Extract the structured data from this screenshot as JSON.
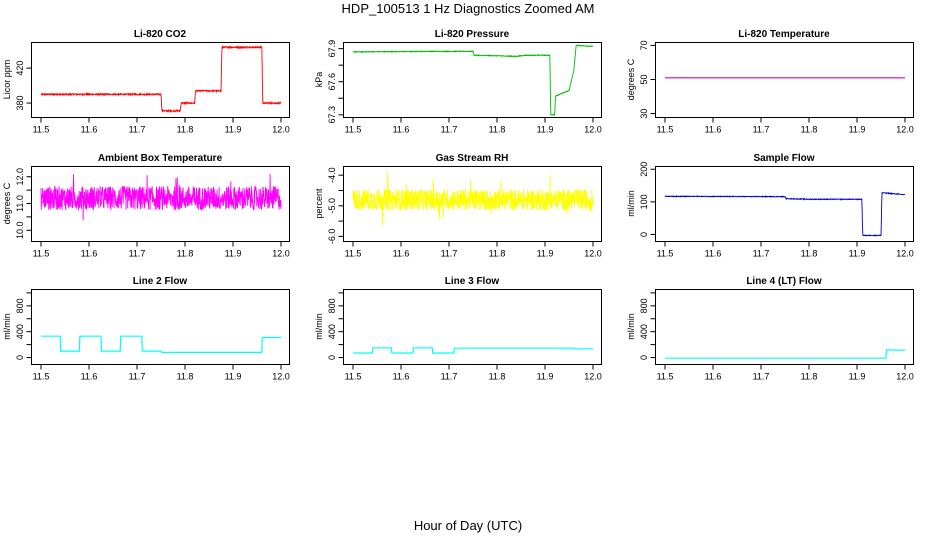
{
  "title": "HDP_100513  1 Hz Diagnostics Zoomed AM",
  "xlabel": "Hour of Day (UTC)",
  "chart_data": [
    {
      "type": "line",
      "title": "Li-820 CO2",
      "ylabel": "Licor ppm",
      "color": "#ff0000",
      "xlim": [
        11.5,
        12.0
      ],
      "xticks": [
        11.5,
        11.6,
        11.7,
        11.8,
        11.9,
        12.0
      ],
      "xtick_labels": [
        "11.5",
        "11.6",
        "11.7",
        "11.8",
        "11.9",
        "12.0"
      ],
      "ylim": [
        364,
        450
      ],
      "yticks": [
        380,
        420
      ],
      "ytick_labels": [
        "380",
        "420"
      ],
      "noise": 0.8,
      "series": [
        {
          "name": "CO2",
          "points": [
            [
              11.5,
              390
            ],
            [
              11.75,
              390
            ],
            [
              11.752,
              371
            ],
            [
              11.79,
              371
            ],
            [
              11.792,
              380
            ],
            [
              11.82,
              380
            ],
            [
              11.822,
              394
            ],
            [
              11.875,
              394
            ],
            [
              11.877,
              444
            ],
            [
              11.96,
              444
            ],
            [
              11.962,
              380
            ],
            [
              12.0,
              380
            ]
          ]
        }
      ]
    },
    {
      "type": "line",
      "title": "Li-820 Pressure",
      "ylabel": "kPa",
      "color": "#00bb00",
      "xlim": [
        11.5,
        12.0
      ],
      "xticks": [
        11.5,
        11.6,
        11.7,
        11.8,
        11.9,
        12.0
      ],
      "xtick_labels": [
        "11.5",
        "11.6",
        "11.7",
        "11.8",
        "11.9",
        "12.0"
      ],
      "ylim": [
        67.28,
        67.96
      ],
      "yticks": [
        67.3,
        67.6,
        67.9
      ],
      "ytick_labels": [
        "67.3",
        "67.6",
        "67.9"
      ],
      "yticks_minor": [
        67.45,
        67.75
      ],
      "noise": 0.003,
      "series": [
        {
          "name": "Pressure",
          "points": [
            [
              11.5,
              67.87
            ],
            [
              11.65,
              67.875
            ],
            [
              11.75,
              67.875
            ],
            [
              11.752,
              67.84
            ],
            [
              11.8,
              67.835
            ],
            [
              11.84,
              67.83
            ],
            [
              11.86,
              67.84
            ],
            [
              11.91,
              67.84
            ],
            [
              11.912,
              67.3
            ],
            [
              11.92,
              67.3
            ],
            [
              11.922,
              67.47
            ],
            [
              11.95,
              67.52
            ],
            [
              11.96,
              67.7
            ],
            [
              11.965,
              67.93
            ],
            [
              12.0,
              67.92
            ]
          ]
        }
      ]
    },
    {
      "type": "line",
      "title": "Li-820 Temperature",
      "ylabel": "degrees C",
      "color": "#cc00cc",
      "xlim": [
        11.5,
        12.0
      ],
      "xticks": [
        11.5,
        11.6,
        11.7,
        11.8,
        11.9,
        12.0
      ],
      "xtick_labels": [
        "11.5",
        "11.6",
        "11.7",
        "11.8",
        "11.9",
        "12.0"
      ],
      "ylim": [
        28,
        72
      ],
      "yticks": [
        30,
        50,
        70
      ],
      "ytick_labels": [
        "30",
        "50",
        "70"
      ],
      "noise": 0,
      "series": [
        {
          "name": "Temperature",
          "points": [
            [
              11.5,
              51
            ],
            [
              12.0,
              51
            ]
          ]
        }
      ]
    },
    {
      "type": "line",
      "title": "Ambient Box Temperature",
      "ylabel": "degrees C",
      "color": "#ff00ff",
      "xlim": [
        11.5,
        12.0
      ],
      "xticks": [
        11.5,
        11.6,
        11.7,
        11.8,
        11.9,
        12.0
      ],
      "xtick_labels": [
        "11.5",
        "11.6",
        "11.7",
        "11.8",
        "11.9",
        "12.0"
      ],
      "ylim": [
        9.6,
        12.4
      ],
      "yticks": [
        10.0,
        11.0,
        12.0
      ],
      "ytick_labels": [
        "10.0",
        "11.0",
        "12.0"
      ],
      "yticks_minor": [
        10.5,
        11.5
      ],
      "noise": 0.45,
      "noise_spikes": 0.8,
      "series": [
        {
          "name": "Ambient",
          "points": [
            [
              11.5,
              11.2
            ],
            [
              12.0,
              11.2
            ]
          ]
        }
      ]
    },
    {
      "type": "line",
      "title": "Gas Stream RH",
      "ylabel": "percent",
      "color": "#ffff00",
      "xlim": [
        11.5,
        12.0
      ],
      "xticks": [
        11.5,
        11.6,
        11.7,
        11.8,
        11.9,
        12.0
      ],
      "xtick_labels": [
        "11.5",
        "11.6",
        "11.7",
        "11.8",
        "11.9",
        "12.0"
      ],
      "ylim": [
        -6.15,
        -3.7
      ],
      "yticks": [
        -6.0,
        -5.0,
        -4.0
      ],
      "ytick_labels": [
        "-6.0",
        "-5.0",
        "-4.0"
      ],
      "yticks_minor": [
        -5.5,
        -4.5
      ],
      "noise": 0.35,
      "noise_spikes": 0.7,
      "series": [
        {
          "name": "RH",
          "points": [
            [
              11.5,
              -4.8
            ],
            [
              12.0,
              -4.8
            ]
          ]
        }
      ]
    },
    {
      "type": "line",
      "title": "Sample Flow",
      "ylabel": "ml/min",
      "color": "#0000cc",
      "xlim": [
        11.5,
        12.0
      ],
      "xticks": [
        11.5,
        11.6,
        11.7,
        11.8,
        11.9,
        12.0
      ],
      "xtick_labels": [
        "11.5",
        "11.6",
        "11.7",
        "11.8",
        "11.9",
        "12.0"
      ],
      "ylim": [
        -20,
        210
      ],
      "yticks": [
        0,
        100,
        200
      ],
      "ytick_labels": [
        "0",
        "100",
        "200"
      ],
      "noise": 1.0,
      "series": [
        {
          "name": "Sample",
          "points": [
            [
              11.5,
              117
            ],
            [
              11.75,
              116
            ],
            [
              11.752,
              110
            ],
            [
              11.8,
              108
            ],
            [
              11.91,
              108
            ],
            [
              11.912,
              -3
            ],
            [
              11.95,
              -3
            ],
            [
              11.952,
              128
            ],
            [
              12.0,
              122
            ]
          ]
        }
      ]
    },
    {
      "type": "line",
      "title": "Line 2 Flow",
      "ylabel": "ml/min",
      "color": "#00ffff",
      "xlim": [
        11.5,
        12.0
      ],
      "xticks": [
        11.5,
        11.6,
        11.7,
        11.8,
        11.9,
        12.0
      ],
      "xtick_labels": [
        "11.5",
        "11.6",
        "11.7",
        "11.8",
        "11.9",
        "12.0"
      ],
      "ylim": [
        -100,
        1060
      ],
      "yticks": [
        0,
        400,
        800
      ],
      "ytick_labels": [
        "0",
        "400",
        "800"
      ],
      "yticks_minor": [
        200,
        600,
        1000
      ],
      "noise": 0,
      "series": [
        {
          "name": "Line 2",
          "points": [
            [
              11.5,
              330
            ],
            [
              11.54,
              330
            ],
            [
              11.541,
              100
            ],
            [
              11.58,
              100
            ],
            [
              11.581,
              330
            ],
            [
              11.625,
              330
            ],
            [
              11.626,
              100
            ],
            [
              11.665,
              100
            ],
            [
              11.666,
              330
            ],
            [
              11.71,
              330
            ],
            [
              11.711,
              100
            ],
            [
              11.75,
              100
            ],
            [
              11.751,
              80
            ],
            [
              11.96,
              80
            ],
            [
              11.961,
              310
            ],
            [
              12.0,
              310
            ]
          ]
        }
      ]
    },
    {
      "type": "line",
      "title": "Line 3 Flow",
      "ylabel": "ml/min",
      "color": "#00ffff",
      "xlim": [
        11.5,
        12.0
      ],
      "xticks": [
        11.5,
        11.6,
        11.7,
        11.8,
        11.9,
        12.0
      ],
      "xtick_labels": [
        "11.5",
        "11.6",
        "11.7",
        "11.8",
        "11.9",
        "12.0"
      ],
      "ylim": [
        -100,
        1060
      ],
      "yticks": [
        0,
        400,
        800
      ],
      "ytick_labels": [
        "0",
        "400",
        "800"
      ],
      "yticks_minor": [
        200,
        600,
        1000
      ],
      "noise": 0,
      "series": [
        {
          "name": "Line 3",
          "points": [
            [
              11.5,
              70
            ],
            [
              11.54,
              70
            ],
            [
              11.541,
              150
            ],
            [
              11.58,
              150
            ],
            [
              11.581,
              70
            ],
            [
              11.625,
              70
            ],
            [
              11.626,
              150
            ],
            [
              11.665,
              150
            ],
            [
              11.666,
              70
            ],
            [
              11.71,
              70
            ],
            [
              11.711,
              145
            ],
            [
              11.96,
              145
            ],
            [
              11.961,
              135
            ],
            [
              12.0,
              135
            ]
          ]
        }
      ]
    },
    {
      "type": "line",
      "title": "Line 4 (LT) Flow",
      "ylabel": "ml/min",
      "color": "#00ffff",
      "xlim": [
        11.5,
        12.0
      ],
      "xticks": [
        11.5,
        11.6,
        11.7,
        11.8,
        11.9,
        12.0
      ],
      "xtick_labels": [
        "11.5",
        "11.6",
        "11.7",
        "11.8",
        "11.9",
        "12.0"
      ],
      "ylim": [
        -100,
        1060
      ],
      "yticks": [
        0,
        400,
        800
      ],
      "ytick_labels": [
        "0",
        "400",
        "800"
      ],
      "yticks_minor": [
        200,
        600,
        1000
      ],
      "noise": 0,
      "series": [
        {
          "name": "Line 4",
          "points": [
            [
              11.5,
              -10
            ],
            [
              11.96,
              -10
            ],
            [
              11.962,
              120
            ],
            [
              12.0,
              110
            ]
          ]
        }
      ]
    }
  ]
}
